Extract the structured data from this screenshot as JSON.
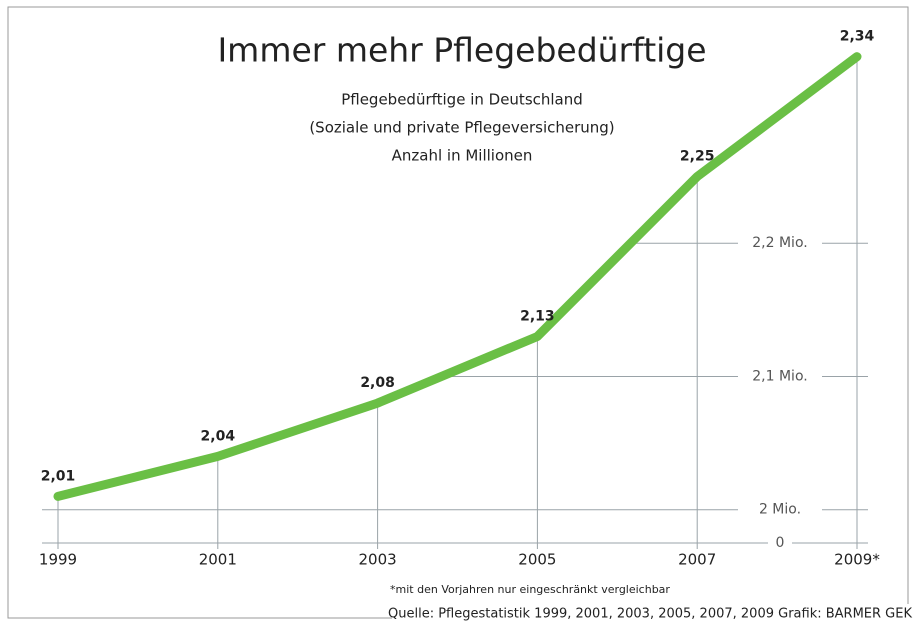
{
  "chart_data": {
    "type": "line",
    "title": "Immer mehr Pflegebedürftige",
    "subtitle": [
      "Pflegebedürftige in Deutschland",
      "(Soziale und private Pflegeversicherung)",
      "Anzahl in Millionen"
    ],
    "categories": [
      "1999",
      "2001",
      "2003",
      "2005",
      "2007",
      "2009*"
    ],
    "series": [
      {
        "name": "Pflegebedürftige",
        "color": "#6abf45",
        "values": [
          2.01,
          2.04,
          2.08,
          2.13,
          2.25,
          2.34
        ],
        "value_labels": [
          "2,01",
          "2,04",
          "2,08",
          "2,13",
          "2,25",
          "2,34"
        ]
      }
    ],
    "ylim": [
      1.975,
      2.36
    ],
    "yticks": [
      {
        "value": 2,
        "label": "2 Mio."
      },
      {
        "value": 2.1,
        "label": "2,1 Mio."
      },
      {
        "value": 2.2,
        "label": "2,2 Mio."
      }
    ],
    "baseline_label": "0",
    "grid": true,
    "footnote": "*mit den Vorjahren nur eingeschränkt vergleichbar",
    "source": "Quelle: Pflegestatistik 1999, 2001, 2003, 2005, 2007, 2009  Grafik: BARMER GEK"
  }
}
